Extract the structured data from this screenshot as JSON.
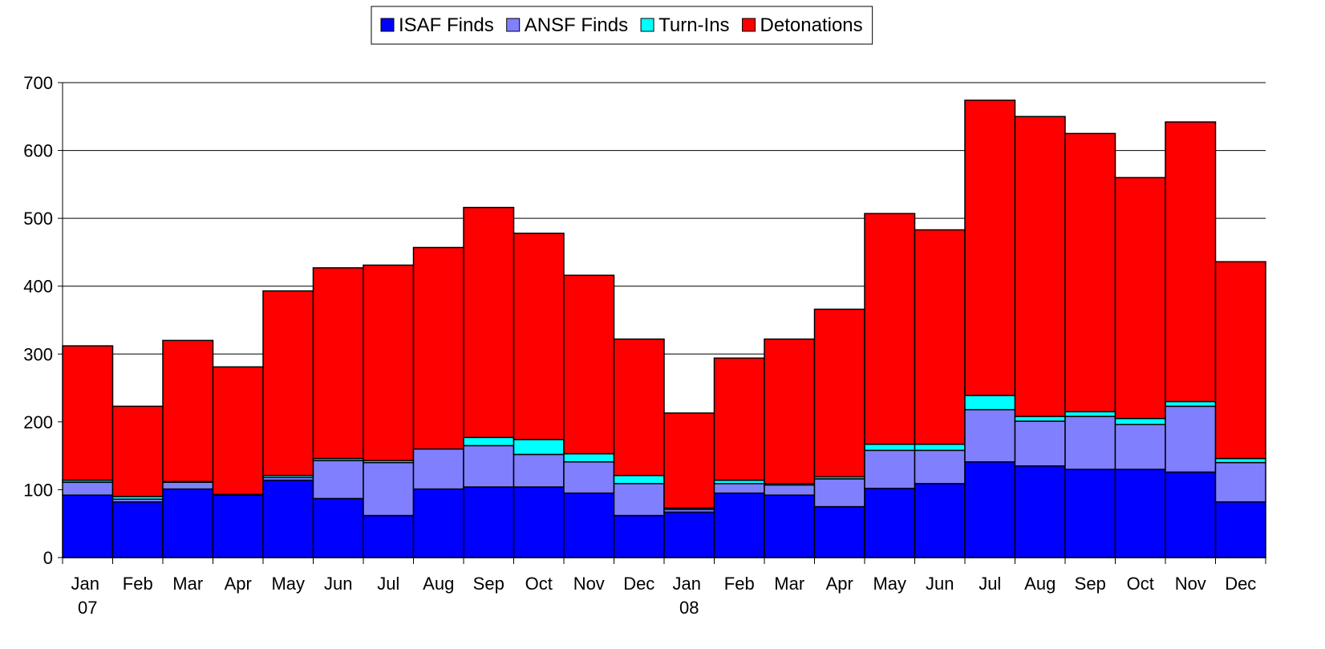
{
  "chart_data": {
    "type": "stacked_bar",
    "categories": [
      "Jan 07",
      "Feb",
      "Mar",
      "Apr",
      "May",
      "Jun",
      "Jul",
      "Aug",
      "Sep",
      "Oct",
      "Nov",
      "Dec",
      "Jan 08",
      "Feb",
      "Mar",
      "Apr",
      "May",
      "Jun",
      "Jul",
      "Aug",
      "Sep",
      "Oct",
      "Nov",
      "Dec"
    ],
    "series": [
      {
        "name": "ISAF Finds",
        "color": "#0000ff",
        "values": [
          92,
          82,
          101,
          92,
          114,
          87,
          62,
          101,
          104,
          104,
          95,
          62,
          67,
          95,
          92,
          75,
          102,
          109,
          141,
          135,
          130,
          130,
          126,
          82
        ]
      },
      {
        "name": "ANSF Finds",
        "color": "#8080ff",
        "values": [
          19,
          4,
          10,
          0,
          4,
          56,
          78,
          59,
          61,
          48,
          46,
          47,
          4,
          14,
          15,
          41,
          56,
          49,
          77,
          66,
          78,
          66,
          97,
          58
        ]
      },
      {
        "name": "Turn-Ins",
        "color": "#00ffff",
        "values": [
          3,
          4,
          1,
          1,
          3,
          3,
          3,
          0,
          12,
          22,
          12,
          12,
          2,
          5,
          2,
          3,
          9,
          9,
          21,
          7,
          7,
          9,
          7,
          6
        ]
      },
      {
        "name": "Detonations",
        "color": "#ff0000",
        "values": [
          198,
          133,
          208,
          188,
          272,
          281,
          288,
          297,
          339,
          304,
          263,
          201,
          140,
          180,
          213,
          247,
          340,
          316,
          435,
          442,
          410,
          355,
          412,
          290
        ]
      }
    ],
    "ylim": [
      0,
      700
    ],
    "yticks": [
      0,
      100,
      200,
      300,
      400,
      500,
      600,
      700
    ],
    "grid": true,
    "legend": "top"
  }
}
